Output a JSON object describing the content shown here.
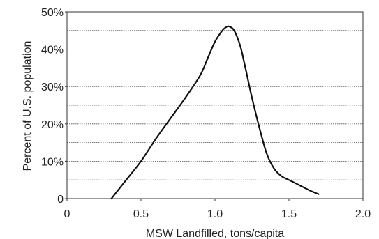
{
  "chart_data": {
    "type": "line",
    "xlabel": "MSW Landfilled, tons/capita",
    "ylabel": "Percent of U.S. population",
    "xlim": [
      0,
      2.0
    ],
    "ylim": [
      0,
      50
    ],
    "x_ticks": [
      "0",
      "0.5",
      "1.0",
      "1.5",
      "2.0"
    ],
    "y_ticks": [
      "0",
      "10%",
      "20%",
      "30%",
      "40%",
      "50%"
    ],
    "grid": "horizontal, dotted, every 5%",
    "series": [
      {
        "x": [
          0.3,
          0.35,
          0.4,
          0.5,
          0.6,
          0.7,
          0.8,
          0.9,
          0.95,
          1.0,
          1.05,
          1.08,
          1.1,
          1.13,
          1.17,
          1.2,
          1.25,
          1.3,
          1.35,
          1.4,
          1.45,
          1.5,
          1.55,
          1.6,
          1.65,
          1.7
        ],
        "y": [
          0,
          2.5,
          5,
          10,
          16,
          21.5,
          27,
          33,
          37.5,
          42,
          45,
          46,
          46,
          45,
          41,
          36,
          27,
          19,
          12,
          8,
          6,
          5,
          4,
          3,
          2,
          1.2
        ]
      }
    ]
  }
}
